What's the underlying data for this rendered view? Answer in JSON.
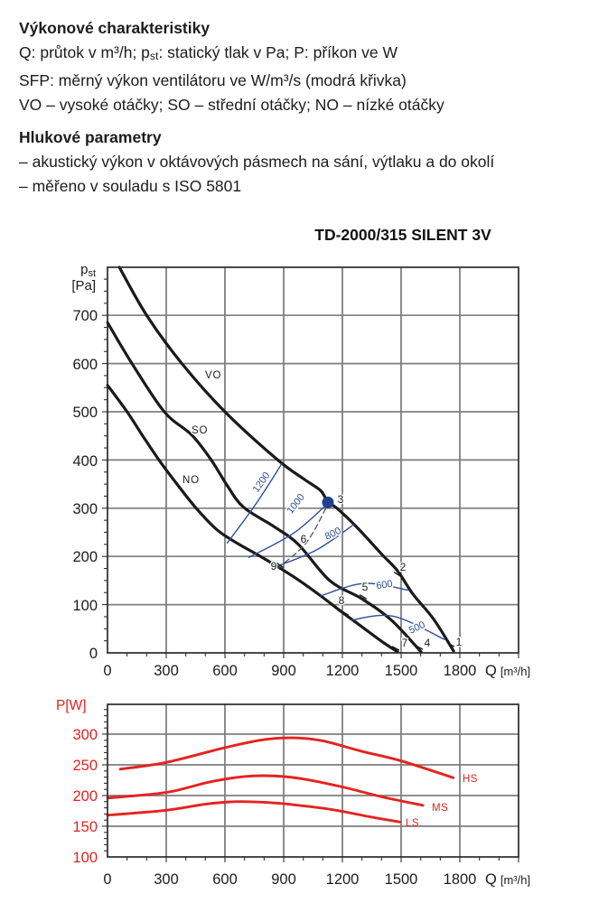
{
  "intro": {
    "heading1": "Výkonové charakteristiky",
    "line1_a": "Q: průtok v m³/h; p",
    "line1_sub": "st",
    "line1_b": ": statický tlak v Pa; P: příkon ve W",
    "line2": "SFP: měrný výkon ventilátoru ve W/m³/s (modrá křivka)",
    "line3": "VO – vysoké otáčky; SO – střední otáčky; NO – nízké otáčky",
    "heading2": "Hlukové parametry",
    "line4": "– akustický výkon v oktávových pásmech na sání, výtlaku a do okolí",
    "line5": "– měřeno v souladu s ISO 5801"
  },
  "title": "TD-2000/315 SILENT 3V",
  "main_chart": {
    "y_label": {
      "main": "p",
      "sub": "st",
      "unit": "[Pa]"
    },
    "x_label": {
      "main": "Q",
      "unit": "[m³/h]"
    },
    "x_ticks": [
      "0",
      "300",
      "600",
      "900",
      "1200",
      "1500",
      "1800"
    ],
    "y_ticks": [
      "700",
      "600",
      "500",
      "400",
      "300",
      "200",
      "100",
      "0"
    ],
    "curve_labels": {
      "vo": "VO",
      "so": "SO",
      "no": "NO"
    },
    "sfp_labels": {
      "s1200": "1200",
      "s1000": "1000",
      "s800": "800",
      "s600": "600",
      "s500": "500"
    },
    "point_labels": [
      "1",
      "2",
      "3",
      "4",
      "5",
      "6",
      "7",
      "8",
      "9"
    ]
  },
  "power_chart": {
    "y_label": "P[W]",
    "x_label": {
      "main": "Q",
      "unit": "[m³/h]"
    },
    "x_ticks": [
      "0",
      "300",
      "600",
      "900",
      "1200",
      "1500",
      "1800"
    ],
    "y_ticks": [
      "300",
      "250",
      "200",
      "150",
      "100"
    ],
    "curve_labels": {
      "hs": "HS",
      "ms": "MS",
      "ls": "LS"
    }
  },
  "colors": {
    "accent_blue": "#2d4f9c",
    "accent_red": "#e5231f",
    "ink": "#1c1c1c",
    "operating_dot": "#20418f"
  },
  "chart_data": [
    {
      "type": "line",
      "title": "TD-2000/315 SILENT 3V",
      "xlabel": "Q [m³/h]",
      "ylabel": "pst [Pa]",
      "xlim": [
        0,
        2100
      ],
      "x_major": 300,
      "x_minor": 100,
      "ylim": [
        0,
        800
      ],
      "y_major": 100,
      "y_minor": 25,
      "grid": true,
      "series": [
        {
          "name": "VO",
          "color": "#1a1a1a",
          "width": 3.2,
          "points": [
            [
              60,
              800
            ],
            [
              200,
              700
            ],
            [
              380,
              600
            ],
            [
              600,
              500
            ],
            [
              870,
              400
            ],
            [
              1005,
              360
            ],
            [
              1090,
              336
            ],
            [
              1126,
              312
            ],
            [
              1172,
              300
            ],
            [
              1280,
              258
            ],
            [
              1400,
              205
            ],
            [
              1482,
              170
            ],
            [
              1560,
              122
            ],
            [
              1666,
              70
            ],
            [
              1768,
              4
            ]
          ]
        },
        {
          "name": "SO",
          "color": "#1a1a1a",
          "width": 3.2,
          "points": [
            [
              0,
              685
            ],
            [
              125,
              600
            ],
            [
              290,
              500
            ],
            [
              430,
              452
            ],
            [
              530,
              400
            ],
            [
              610,
              348
            ],
            [
              695,
              302
            ],
            [
              850,
              262
            ],
            [
              975,
              225
            ],
            [
              1135,
              150
            ],
            [
              1300,
              112
            ],
            [
              1450,
              68
            ],
            [
              1602,
              2
            ]
          ]
        },
        {
          "name": "NO",
          "color": "#1a1a1a",
          "width": 3.2,
          "points": [
            [
              0,
              555
            ],
            [
              100,
              500
            ],
            [
              180,
              450
            ],
            [
              263,
              400
            ],
            [
              355,
              350
            ],
            [
              453,
              300
            ],
            [
              560,
              255
            ],
            [
              660,
              228
            ],
            [
              760,
              205
            ],
            [
              872,
              178
            ],
            [
              980,
              150
            ],
            [
              1090,
              118
            ],
            [
              1196,
              85
            ],
            [
              1300,
              54
            ],
            [
              1400,
              24
            ],
            [
              1482,
              2
            ]
          ]
        },
        {
          "name": "SFP1200",
          "color": "#2d4f9c",
          "width": 1.4,
          "points": [
            [
              612,
              228
            ],
            [
              760,
              310
            ],
            [
              890,
              392
            ]
          ]
        },
        {
          "name": "SFP1000",
          "color": "#2d4f9c",
          "width": 1.4,
          "points": [
            [
              722,
              198
            ],
            [
              950,
              248
            ],
            [
              1126,
              310
            ]
          ]
        },
        {
          "name": "SFP800",
          "color": "#2d4f9c",
          "width": 1.4,
          "points": [
            [
              870,
              180
            ],
            [
              1070,
              214
            ],
            [
              1258,
              266
            ]
          ]
        },
        {
          "name": "SFP600",
          "color": "#2d4f9c",
          "width": 1.4,
          "points": [
            [
              1088,
              118
            ],
            [
              1310,
              144
            ],
            [
              1537,
              130
            ]
          ]
        },
        {
          "name": "SFP500",
          "color": "#2d4f9c",
          "width": 1.4,
          "points": [
            [
              1246,
              68
            ],
            [
              1460,
              76
            ],
            [
              1721,
              28
            ]
          ]
        },
        {
          "name": "ref-dashed",
          "color": "#555555",
          "width": 1.3,
          "dash": "6 4",
          "points": [
            [
              870,
              176
            ],
            [
              1015,
              228
            ],
            [
              1126,
              308
            ]
          ]
        }
      ],
      "operating_point": {
        "x": 1126,
        "y": 312,
        "label": "3",
        "sfp": 1000
      }
    },
    {
      "type": "line",
      "xlabel": "Q [m³/h]",
      "ylabel": "P [W]",
      "xlim": [
        0,
        2100
      ],
      "x_major": 300,
      "x_minor": 100,
      "ylim": [
        100,
        350
      ],
      "y_major": 50,
      "y_minor": 10,
      "grid": true,
      "series": [
        {
          "name": "HS",
          "color": "#e5231f",
          "width": 2.9,
          "points": [
            [
              65,
              243
            ],
            [
              300,
              254
            ],
            [
              600,
              278
            ],
            [
              800,
              291
            ],
            [
              950,
              294
            ],
            [
              1100,
              289
            ],
            [
              1300,
              272
            ],
            [
              1505,
              256
            ],
            [
              1766,
              229
            ]
          ]
        },
        {
          "name": "MS",
          "color": "#e5231f",
          "width": 2.9,
          "points": [
            [
              0,
              196
            ],
            [
              300,
              205
            ],
            [
              520,
              222
            ],
            [
              700,
              231
            ],
            [
              850,
              232
            ],
            [
              1000,
              227
            ],
            [
              1200,
              214
            ],
            [
              1400,
              198
            ],
            [
              1611,
              184
            ]
          ]
        },
        {
          "name": "LS",
          "color": "#e5231f",
          "width": 2.9,
          "points": [
            [
              0,
              168
            ],
            [
              300,
              176
            ],
            [
              500,
              186
            ],
            [
              650,
              190
            ],
            [
              800,
              189
            ],
            [
              950,
              185
            ],
            [
              1150,
              177
            ],
            [
              1330,
              166
            ],
            [
              1491,
              157
            ]
          ]
        }
      ]
    }
  ]
}
